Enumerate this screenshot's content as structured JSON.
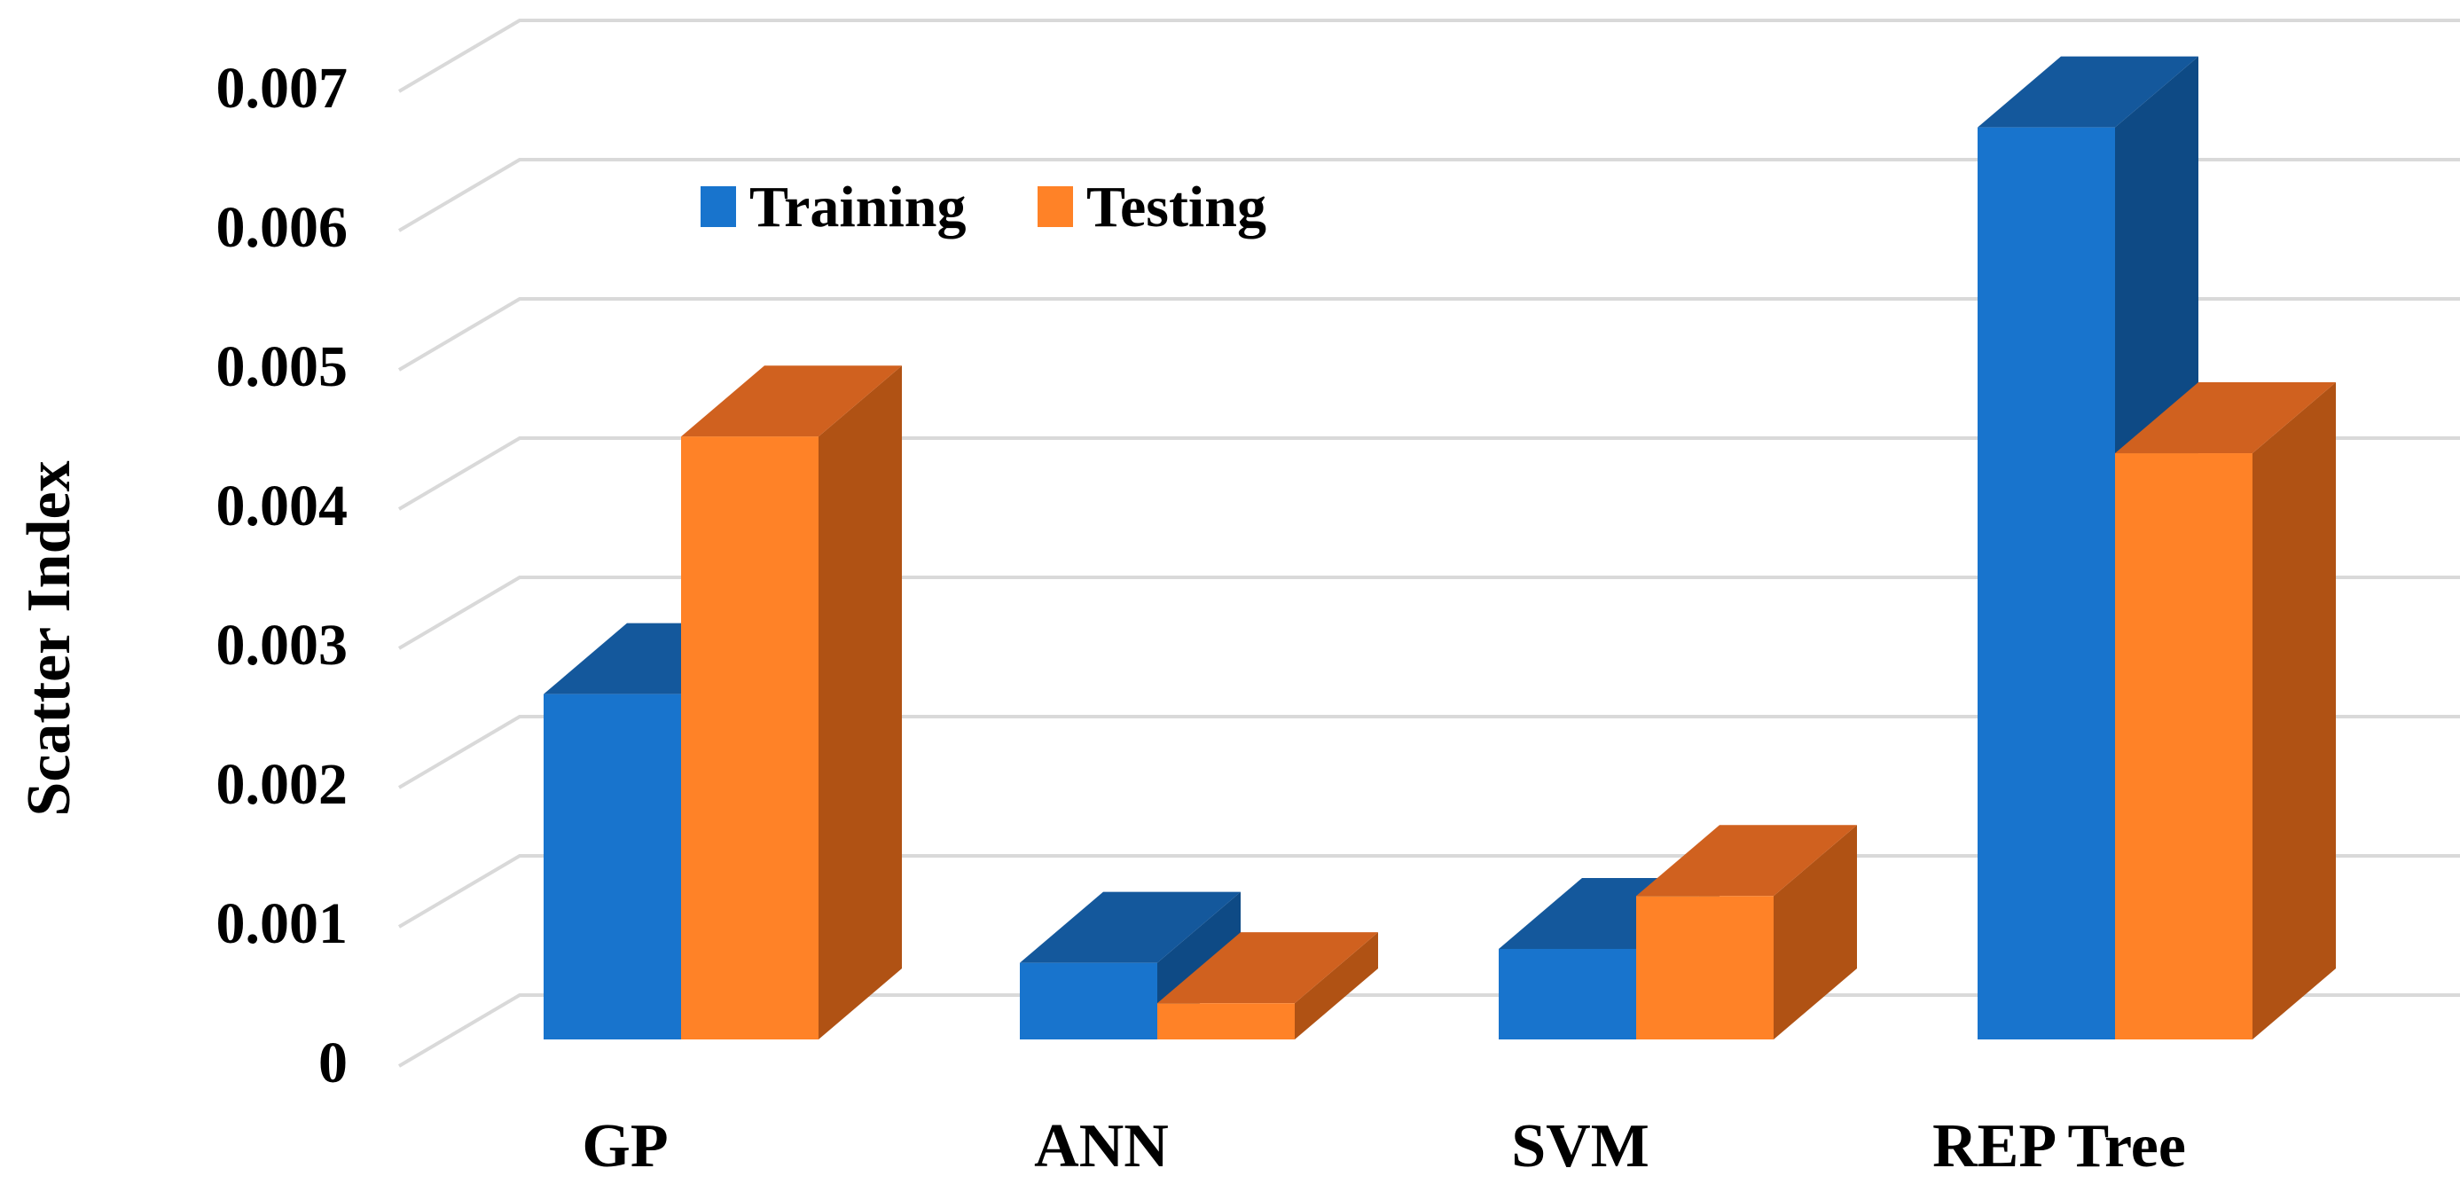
{
  "chart_data": {
    "type": "bar",
    "three_d": true,
    "categories": [
      "GP",
      "ANN",
      "SVM",
      "REP Tree"
    ],
    "series": [
      {
        "name": "Training",
        "values": [
          0.00248,
          0.00055,
          0.00065,
          0.00655
        ],
        "colors": {
          "front": "#1874CD",
          "top": "#14589C",
          "side": "#0E4A85"
        }
      },
      {
        "name": "Testing",
        "values": [
          0.00433,
          0.00026,
          0.00103,
          0.00421
        ],
        "colors": {
          "front": "#FF8227",
          "top": "#D0611F",
          "side": "#B05214"
        }
      }
    ],
    "title": "",
    "xlabel": "",
    "ylabel": "Scatter Index",
    "ylim": [
      0,
      0.007
    ],
    "yticks": [
      0,
      0.001,
      0.002,
      0.003,
      0.004,
      0.005,
      0.006,
      0.007
    ],
    "ytick_labels": [
      "0",
      "0.001",
      "0.002",
      "0.003",
      "0.004",
      "0.005",
      "0.006",
      "0.007"
    ],
    "grid": true,
    "gridline_color": "#D9D9D9",
    "legend_position": "top-left"
  }
}
